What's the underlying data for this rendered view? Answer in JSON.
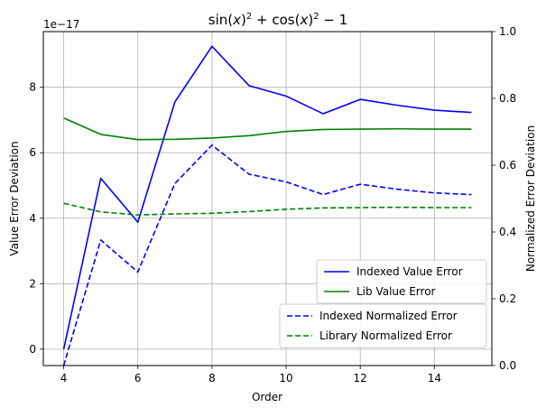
{
  "chart_data": {
    "type": "line",
    "title_parts": {
      "a": "sin(",
      "b": "x",
      "c": ")",
      "d": "2",
      "e": " + cos(",
      "f": "x",
      "g": ")",
      "h": "2",
      "i": " − 1"
    },
    "xlabel": "Order",
    "ylabel_left": "Value Error Deviation",
    "ylabel_right": "Normalized Error Deviation",
    "left_offset_text": "1e−17",
    "x": [
      4,
      5,
      6,
      7,
      8,
      9,
      10,
      11,
      12,
      13,
      14,
      15
    ],
    "xlim": [
      3.45,
      15.55
    ],
    "ylim_left": [
      -0.5,
      9.7
    ],
    "ylim_right": [
      0.0,
      1.0
    ],
    "x_ticks": [
      4,
      6,
      8,
      10,
      12,
      14
    ],
    "x_tick_labels": [
      "4",
      "6",
      "8",
      "10",
      "12",
      "14"
    ],
    "left_ticks": [
      0,
      2,
      4,
      6,
      8
    ],
    "left_tick_labels": [
      "0",
      "2",
      "4",
      "6",
      "8"
    ],
    "right_ticks": [
      0.0,
      0.2,
      0.4,
      0.6,
      0.8,
      1.0
    ],
    "right_tick_labels": [
      "0.0",
      "0.2",
      "0.4",
      "0.6",
      "0.8",
      "1.0"
    ],
    "grid": true,
    "series": [
      {
        "name": "Indexed Value Error",
        "axis": "left",
        "style": "solid",
        "color": "#0000ff",
        "values": [
          0.0,
          5.22,
          3.88,
          7.55,
          9.25,
          8.05,
          7.73,
          7.19,
          7.63,
          7.45,
          7.3,
          7.23
        ]
      },
      {
        "name": "Lib Value Error",
        "axis": "left",
        "style": "solid",
        "color": "#008000",
        "values": [
          7.06,
          6.56,
          6.4,
          6.41,
          6.45,
          6.52,
          6.65,
          6.71,
          6.72,
          6.73,
          6.72,
          6.72
        ]
      },
      {
        "name": "Indexed Normalized Error",
        "axis": "right",
        "style": "dashed",
        "color": "#0000ff",
        "values": [
          0.0,
          0.376,
          0.28,
          0.545,
          0.66,
          0.573,
          0.55,
          0.512,
          0.543,
          0.528,
          0.517,
          0.512
        ]
      },
      {
        "name": "Library Normalized Error",
        "axis": "right",
        "style": "dashed",
        "color": "#008000",
        "values": [
          0.486,
          0.46,
          0.451,
          0.454,
          0.456,
          0.461,
          0.468,
          0.472,
          0.473,
          0.474,
          0.473,
          0.473
        ]
      }
    ],
    "legends": [
      {
        "placement": "lower-right-upper",
        "entries": [
          0,
          1
        ]
      },
      {
        "placement": "lower-right",
        "entries": [
          2,
          3
        ]
      }
    ]
  }
}
